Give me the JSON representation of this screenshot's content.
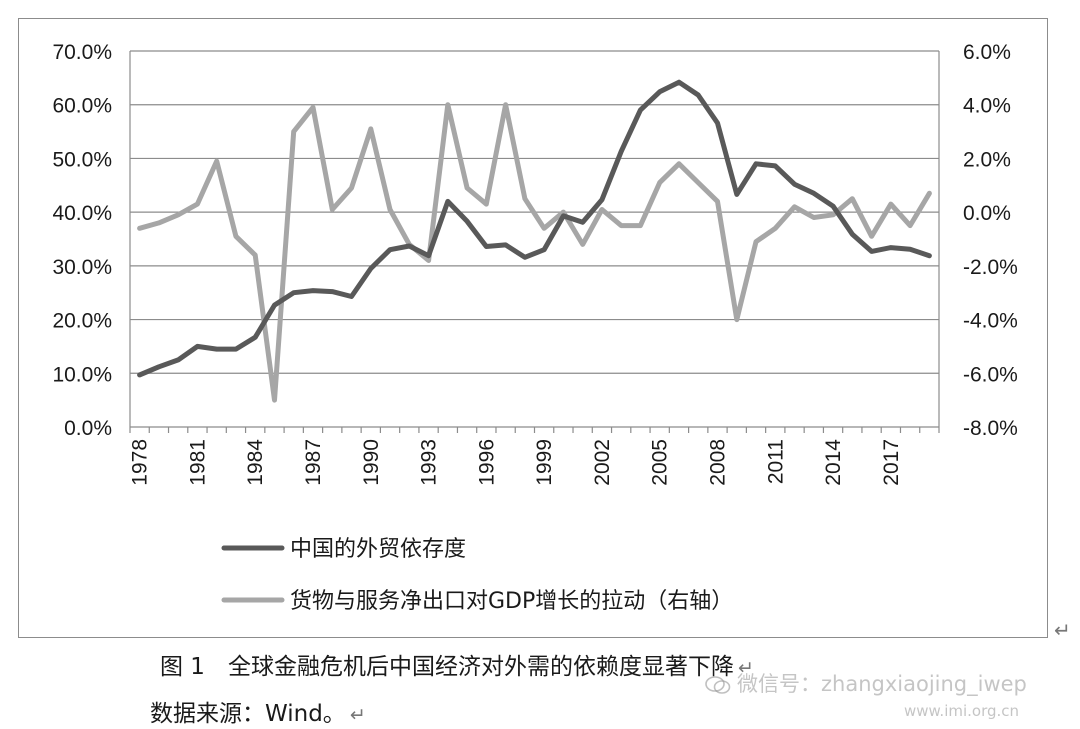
{
  "chart_data": {
    "type": "line",
    "title": "",
    "x": [
      1978,
      1979,
      1980,
      1981,
      1982,
      1983,
      1984,
      1985,
      1986,
      1987,
      1988,
      1989,
      1990,
      1991,
      1992,
      1993,
      1994,
      1995,
      1996,
      1997,
      1998,
      1999,
      2000,
      2001,
      2002,
      2003,
      2004,
      2005,
      2006,
      2007,
      2008,
      2009,
      2010,
      2011,
      2012,
      2013,
      2014,
      2015,
      2016,
      2017,
      2018,
      2019
    ],
    "x_tick_labels": [
      "1978",
      "1981",
      "1984",
      "1987",
      "1990",
      "1993",
      "1996",
      "1999",
      "2002",
      "2005",
      "2008",
      "2011",
      "2014",
      "2017"
    ],
    "y_left": {
      "range": [
        0,
        70
      ],
      "tick_labels": [
        "0.0%",
        "10.0%",
        "20.0%",
        "30.0%",
        "40.0%",
        "50.0%",
        "60.0%",
        "70.0%"
      ]
    },
    "y_right": {
      "range": [
        -8,
        6
      ],
      "tick_labels": [
        "-8.0%",
        "-6.0%",
        "-4.0%",
        "-2.0%",
        "0.0%",
        "2.0%",
        "4.0%",
        "6.0%"
      ]
    },
    "grid": "horizontal",
    "legend_placement": "bottom",
    "series": [
      {
        "name": "中国的外贸依存度",
        "axis": "left",
        "color": "#595959",
        "values": [
          9.7,
          11.2,
          12.5,
          15.0,
          14.5,
          14.5,
          16.7,
          22.7,
          25.0,
          25.4,
          25.2,
          24.3,
          29.5,
          33.0,
          33.7,
          31.9,
          42.0,
          38.3,
          33.6,
          33.9,
          31.6,
          33.0,
          39.3,
          38.1,
          42.3,
          51.3,
          59.0,
          62.4,
          64.2,
          61.8,
          56.6,
          43.3,
          49.0,
          48.6,
          45.2,
          43.5,
          41.1,
          35.9,
          32.7,
          33.4,
          33.1,
          31.9
        ]
      },
      {
        "name": "货物与服务净出口对GDP增长的拉动（右轴）",
        "axis": "right",
        "color": "#a6a6a6",
        "values": [
          -0.6,
          -0.4,
          -0.1,
          0.3,
          1.9,
          -0.9,
          -1.6,
          -7.0,
          3.0,
          3.9,
          0.1,
          0.9,
          3.1,
          0.1,
          -1.2,
          -1.8,
          4.0,
          0.9,
          0.3,
          4.0,
          0.5,
          -0.6,
          0.0,
          -1.2,
          0.1,
          -0.5,
          -0.5,
          1.1,
          1.8,
          1.1,
          0.4,
          -4.0,
          -1.1,
          -0.6,
          0.2,
          -0.2,
          -0.1,
          0.5,
          -0.9,
          0.3,
          -0.5,
          0.7
        ]
      }
    ]
  },
  "caption": "图 1　全球金融危机后中国经济对外需的依赖度显著下降",
  "source": "数据来源：Wind。",
  "paragraph_mark": "↵",
  "watermark_text": "微信号：zhangxiaojing_iwep",
  "watermark_url": "www.imi.org.cn"
}
